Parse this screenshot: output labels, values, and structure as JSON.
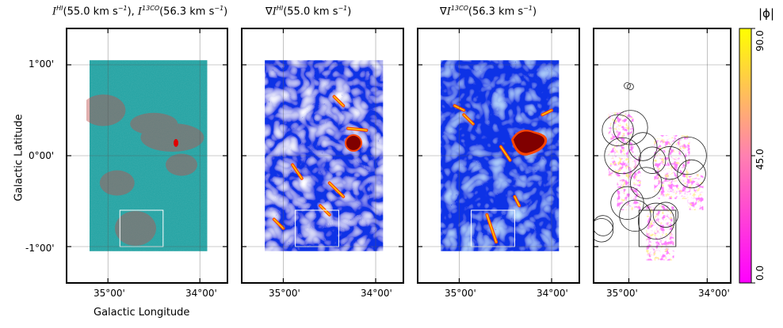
{
  "figure": {
    "panel_titles": [
      {
        "main": "I",
        "sup": "HI",
        "rest": "(55.0 km s",
        "sup2": "−1",
        "rest2": "), ",
        "main2": "I",
        "sup3": "13CO",
        "rest3": "(56.3 km s",
        "sup4": "−1",
        "rest4": ")"
      },
      {
        "pre": "∇",
        "main": "I",
        "sup": "HI",
        "rest": "(55.0 km s",
        "sup2": "−1",
        "rest2": ")"
      },
      {
        "pre": "∇",
        "main": "I",
        "sup": "13CO",
        "rest": "(56.3 km s",
        "sup2": "−1",
        "rest2": ")"
      }
    ],
    "xlabel": "Galactic Longitude",
    "ylabel": "Galactic Latitude",
    "colorbar": {
      "label": "|ϕ|",
      "ticks": [
        "0.0",
        "45.0",
        "90.0"
      ],
      "colors": [
        "#ff00ff",
        "#ff80b0",
        "#ffff00"
      ]
    }
  },
  "chart_data": [
    {
      "type": "heatmap",
      "panel": "intensity overlay",
      "xlabel": "Galactic Longitude",
      "ylabel": "Galactic Latitude",
      "xticks": [
        "35°00'",
        "34°00'"
      ],
      "yticks": [
        "1°00'",
        "0°00'",
        "-1°00'"
      ],
      "xlim_deg": [
        35.45,
        33.7
      ],
      "ylim_deg": [
        -1.4,
        1.4
      ],
      "map_extent_deg": {
        "l": [
          35.2,
          33.92
        ],
        "b": [
          -1.05,
          1.05
        ]
      },
      "colors": {
        "hi": "#1fa3a3",
        "co": "#c0504d"
      },
      "co_peak": {
        "l": 34.26,
        "b": 0.14
      },
      "box": {
        "l": [
          34.87,
          34.4
        ],
        "b": [
          -1.0,
          -0.6
        ]
      }
    },
    {
      "type": "heatmap",
      "panel": "HI gradient",
      "xticks": [
        "35°00'",
        "34°00'"
      ],
      "xlim_deg": [
        35.45,
        33.7
      ],
      "colormap": [
        "#0000aa",
        "#0a32e6",
        "#4fa8ff",
        "#ffffff",
        "#ffd000",
        "#ff4500",
        "#800000"
      ],
      "features": [
        {
          "kind": "blob",
          "l": 34.24,
          "b": 0.14,
          "value": "max"
        }
      ],
      "box": {
        "l": [
          34.87,
          34.4
        ],
        "b": [
          -1.0,
          -0.6
        ]
      }
    },
    {
      "type": "heatmap",
      "panel": "13CO gradient",
      "xticks": [
        "35°00'",
        "34°00'"
      ],
      "xlim_deg": [
        35.45,
        33.7
      ],
      "colormap": [
        "#0000aa",
        "#0a32e6",
        "#4fa8ff",
        "#ffffff",
        "#ffd000",
        "#ff4500",
        "#800000"
      ],
      "features": [
        {
          "kind": "blob",
          "l": 34.25,
          "b": 0.16,
          "value": "max"
        }
      ],
      "box": {
        "l": [
          34.87,
          34.4
        ],
        "b": [
          -1.0,
          -0.6
        ]
      }
    },
    {
      "type": "scatter",
      "panel": "relative orientation |phi|",
      "xticks": [
        "35°00'",
        "34°00'"
      ],
      "xlim_deg": [
        35.45,
        33.7
      ],
      "clim": [
        0,
        90
      ],
      "circles_deg": [
        {
          "l": 35.14,
          "b": 0.28,
          "r": 0.2
        },
        {
          "l": 34.98,
          "b": 0.31,
          "r": 0.22
        },
        {
          "l": 34.82,
          "b": 0.1,
          "r": 0.18
        },
        {
          "l": 35.08,
          "b": 0.0,
          "r": 0.23
        },
        {
          "l": 34.7,
          "b": -0.05,
          "r": 0.17
        },
        {
          "l": 34.48,
          "b": -0.08,
          "r": 0.21
        },
        {
          "l": 34.25,
          "b": -0.0,
          "r": 0.24
        },
        {
          "l": 34.2,
          "b": -0.2,
          "r": 0.18
        },
        {
          "l": 34.78,
          "b": -0.3,
          "r": 0.2
        },
        {
          "l": 35.02,
          "b": -0.52,
          "r": 0.21
        },
        {
          "l": 34.92,
          "b": -0.66,
          "r": 0.2
        },
        {
          "l": 34.65,
          "b": -0.72,
          "r": 0.23
        },
        {
          "l": 34.53,
          "b": -0.65,
          "r": 0.16
        },
        {
          "l": 35.33,
          "b": -0.77,
          "r": 0.13
        },
        {
          "l": 35.35,
          "b": -0.82,
          "r": 0.15
        },
        {
          "l": 35.02,
          "b": 0.77,
          "r": 0.04
        },
        {
          "l": 34.98,
          "b": 0.76,
          "r": 0.04
        }
      ],
      "box": {
        "l": [
          34.87,
          34.4
        ],
        "b": [
          -1.0,
          -0.6
        ]
      }
    }
  ]
}
